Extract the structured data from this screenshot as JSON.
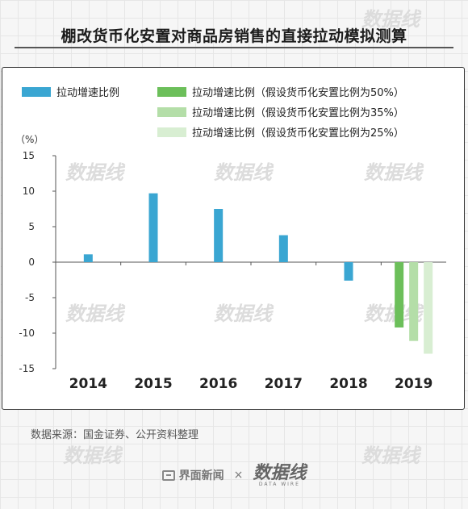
{
  "title": "棚改货币化安置对商品房销售的直接拉动模拟测算",
  "source_note": "数据来源：国金证券、公开资料整理",
  "footer": {
    "brand_name": "界面新闻",
    "separator": "×",
    "partner_cn": "数据线",
    "partner_en": "DATA WIRE"
  },
  "watermark_text": "数据线",
  "legend": [
    {
      "label": "拉动增速比例",
      "color": "#3aa6d2"
    },
    {
      "label": "拉动增速比例（假设货币化安置比例为50%）",
      "color": "#6cbf5a"
    },
    {
      "label": "拉动增速比例（假设货币化安置比例为35%）",
      "color": "#b4dea8"
    },
    {
      "label": "拉动增速比例（假设货币化安置比例为25%）",
      "color": "#d8eed2"
    }
  ],
  "chart_data": {
    "type": "bar",
    "unit_label": "（%）",
    "categories": [
      "2014",
      "2015",
      "2016",
      "2017",
      "2018",
      "2019"
    ],
    "ylim": [
      -15,
      15
    ],
    "yticks": [
      15,
      10,
      5,
      0,
      -5,
      -10,
      -15
    ],
    "series": [
      {
        "name": "拉动增速比例",
        "color": "#3aa6d2",
        "values": [
          1.1,
          9.7,
          7.5,
          3.8,
          -2.6,
          null
        ]
      },
      {
        "name": "拉动增速比例（假设货币化安置比例为50%）",
        "color": "#6cbf5a",
        "values": [
          null,
          null,
          null,
          null,
          null,
          -9.2
        ]
      },
      {
        "name": "拉动增速比例（假设货币化安置比例为35%）",
        "color": "#b4dea8",
        "values": [
          null,
          null,
          null,
          null,
          null,
          -11.1
        ]
      },
      {
        "name": "拉动增速比例（假设货币化安置比例为25%）",
        "color": "#d8eed2",
        "values": [
          null,
          null,
          null,
          null,
          null,
          -12.9
        ]
      }
    ]
  }
}
